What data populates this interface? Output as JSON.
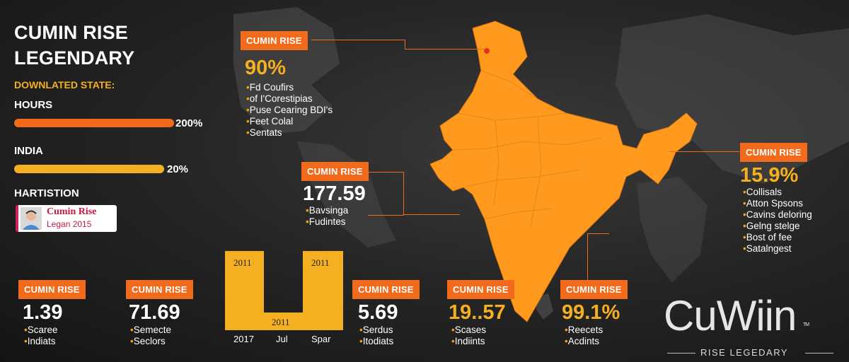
{
  "header": {
    "title_line1": "CUMIN RISE",
    "title_line2": "LEGENDARY",
    "subtitle": "DOWNLATED STATE:"
  },
  "stats": [
    {
      "label": "HOURS",
      "value_text": "200%",
      "fill": 1.0,
      "color": "#f26a1b"
    },
    {
      "label": "INDIA",
      "value_text": "20%",
      "fill": 0.2,
      "color": "#f5b021"
    }
  ],
  "hartistion": {
    "label": "HARTISTION",
    "card_title": "Cumin Rise",
    "card_sub": "Legan 2015"
  },
  "callouts": {
    "top": {
      "badge": "CUMIN RISE",
      "value": "90%",
      "items": [
        "Fd Coufirs",
        "of I'Corestipias",
        "Puse Cearing BDI's",
        "Feet Colal",
        "Sentats"
      ]
    },
    "mid": {
      "badge": "CUMIN RISE",
      "value": "177.59",
      "items": [
        "Bavsinga",
        "Fudintes"
      ]
    },
    "right": {
      "badge": "CUMIN RISE",
      "value": "15.9%",
      "items": [
        "Collisals",
        "Atton Spsons",
        "Cavins deloring",
        "Gelng stelge",
        "Bost of fee",
        "Satalngest"
      ]
    }
  },
  "bottom_stats": [
    {
      "badge": "CUMIN RISE",
      "value": "1.39",
      "items": [
        "Scaree",
        "Indiats"
      ],
      "accent": false
    },
    {
      "badge": "CUMIN RISE",
      "value": "71.69",
      "items": [
        "Semecte",
        "Seclors"
      ],
      "accent": false
    },
    {
      "badge": "CUMIN RISE",
      "value": "5.69",
      "items": [
        "Serdus",
        "Itodiats"
      ],
      "accent": false
    },
    {
      "badge": "CUMIN RISE",
      "value": "19..57",
      "items": [
        "Scases",
        "Indiints"
      ],
      "accent": true
    },
    {
      "badge": "CUMIN RISE",
      "value": "99.1%",
      "items": [
        "Reecets",
        "Acdints"
      ],
      "accent": true
    }
  ],
  "mini_chart": {
    "bar_labels": [
      "2011",
      "2011",
      "2011"
    ],
    "x_labels": [
      "2017",
      "Jul",
      "Spar"
    ]
  },
  "brand": {
    "logo_text": "CuWiin",
    "tm": "TM",
    "tagline": "RISE LEGEDARY"
  },
  "colors": {
    "orange": "#f26a1b",
    "amber": "#f5b021",
    "map_fill": "#ff9a1e"
  }
}
